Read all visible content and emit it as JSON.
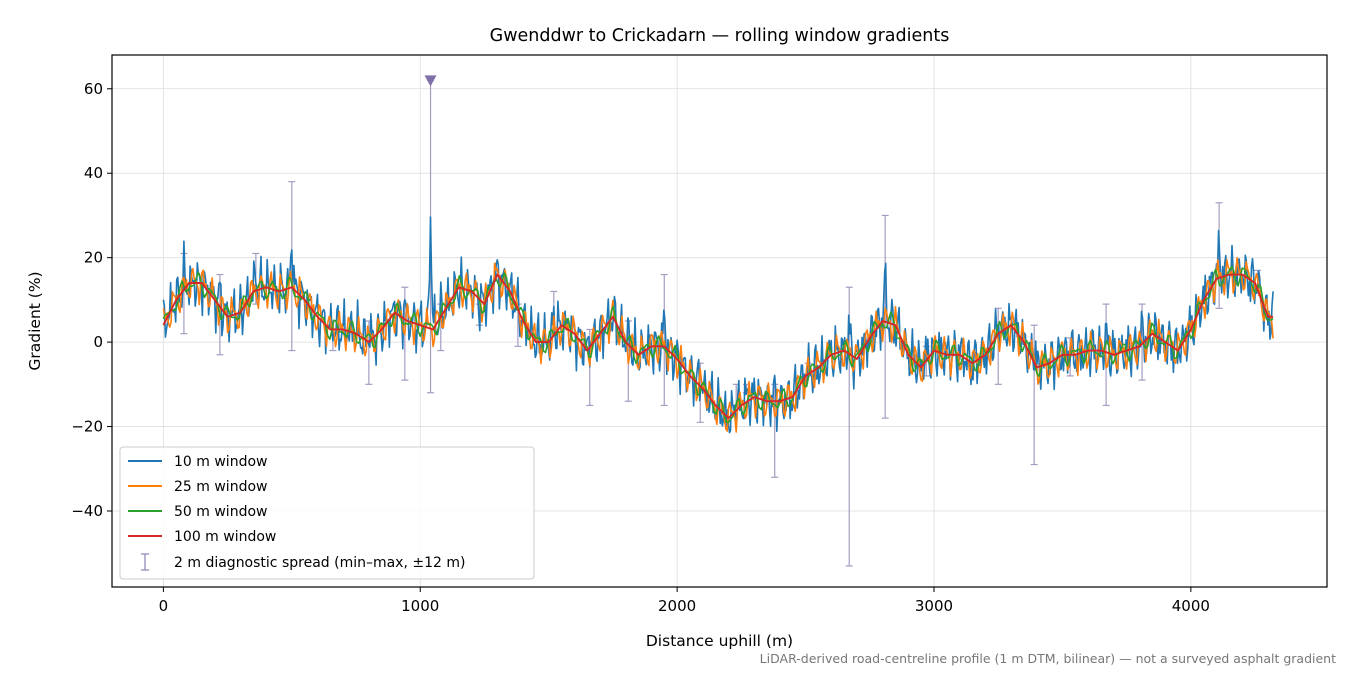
{
  "chart_data": {
    "type": "line",
    "title": "Gwenddwr to Crickadarn — rolling window gradients",
    "xlabel": "Distance uphill (m)",
    "ylabel": "Gradient (%)",
    "xlim": [
      -200,
      4530
    ],
    "ylim": [
      -58,
      68
    ],
    "xticks": [
      0,
      1000,
      2000,
      3000,
      4000
    ],
    "yticks": [
      -40,
      -20,
      0,
      20,
      40,
      60
    ],
    "xtick_labels": [
      "0",
      "1000",
      "2000",
      "3000",
      "4000"
    ],
    "ytick_labels": [
      "−40",
      "−20",
      "0",
      "20",
      "40",
      "60"
    ],
    "grid": true,
    "legend_position": "lower-left",
    "colors": {
      "w10": "#1f77b4",
      "w25": "#ff7f0e",
      "w50": "#2ca02c",
      "w100": "#d62728",
      "spread": "#9b93bd"
    },
    "x_max": 4320,
    "series": [
      {
        "key": "w100",
        "name": "100 m window",
        "points": [
          [
            0,
            4
          ],
          [
            50,
            10
          ],
          [
            100,
            14
          ],
          [
            150,
            14
          ],
          [
            200,
            10
          ],
          [
            250,
            6
          ],
          [
            300,
            7
          ],
          [
            350,
            12
          ],
          [
            400,
            13
          ],
          [
            450,
            12
          ],
          [
            500,
            13
          ],
          [
            550,
            10
          ],
          [
            600,
            6
          ],
          [
            650,
            3
          ],
          [
            700,
            3
          ],
          [
            750,
            2
          ],
          [
            800,
            0
          ],
          [
            850,
            3
          ],
          [
            900,
            7
          ],
          [
            950,
            5
          ],
          [
            1000,
            4
          ],
          [
            1050,
            3
          ],
          [
            1100,
            8
          ],
          [
            1150,
            13
          ],
          [
            1200,
            12
          ],
          [
            1250,
            9
          ],
          [
            1300,
            16
          ],
          [
            1350,
            12
          ],
          [
            1400,
            5
          ],
          [
            1450,
            0
          ],
          [
            1500,
            0
          ],
          [
            1550,
            4
          ],
          [
            1600,
            2
          ],
          [
            1650,
            -2
          ],
          [
            1700,
            2
          ],
          [
            1750,
            6
          ],
          [
            1800,
            0
          ],
          [
            1850,
            -3
          ],
          [
            1900,
            -1
          ],
          [
            1950,
            -1
          ],
          [
            2000,
            -4
          ],
          [
            2050,
            -8
          ],
          [
            2100,
            -11
          ],
          [
            2150,
            -15
          ],
          [
            2200,
            -18
          ],
          [
            2250,
            -15
          ],
          [
            2300,
            -13
          ],
          [
            2350,
            -14
          ],
          [
            2400,
            -14
          ],
          [
            2450,
            -13
          ],
          [
            2500,
            -8
          ],
          [
            2550,
            -6
          ],
          [
            2600,
            -3
          ],
          [
            2650,
            -2
          ],
          [
            2700,
            -4
          ],
          [
            2750,
            1
          ],
          [
            2800,
            5
          ],
          [
            2850,
            4
          ],
          [
            2900,
            -3
          ],
          [
            2950,
            -6
          ],
          [
            3000,
            -2
          ],
          [
            3050,
            -3
          ],
          [
            3100,
            -3
          ],
          [
            3150,
            -5
          ],
          [
            3200,
            -3
          ],
          [
            3250,
            2
          ],
          [
            3300,
            4
          ],
          [
            3350,
            0
          ],
          [
            3400,
            -6
          ],
          [
            3450,
            -5
          ],
          [
            3500,
            -3
          ],
          [
            3550,
            -3
          ],
          [
            3600,
            -2
          ],
          [
            3650,
            -2
          ],
          [
            3700,
            -3
          ],
          [
            3750,
            -2
          ],
          [
            3800,
            -1
          ],
          [
            3850,
            2
          ],
          [
            3900,
            0
          ],
          [
            3950,
            -2
          ],
          [
            4000,
            3
          ],
          [
            4050,
            10
          ],
          [
            4100,
            15
          ],
          [
            4150,
            16
          ],
          [
            4200,
            16
          ],
          [
            4250,
            14
          ],
          [
            4300,
            6
          ]
        ]
      },
      {
        "key": "w50",
        "name": "50 m window"
      },
      {
        "key": "w25",
        "name": "25 m window"
      },
      {
        "key": "w10",
        "name": "10 m window"
      }
    ],
    "spread_name": "2 m diagnostic spread (min–max, ±12 m)",
    "spread_bars": [
      [
        80,
        2,
        21
      ],
      [
        220,
        -3,
        16
      ],
      [
        360,
        9,
        21
      ],
      [
        500,
        -2,
        38
      ],
      [
        660,
        -2,
        5
      ],
      [
        800,
        -10,
        5
      ],
      [
        940,
        -9,
        13
      ],
      [
        1040,
        -12,
        62
      ],
      [
        1080,
        -2,
        9
      ],
      [
        1230,
        4,
        9
      ],
      [
        1380,
        -1,
        9
      ],
      [
        1520,
        2,
        12
      ],
      [
        1660,
        -15,
        3
      ],
      [
        1810,
        -14,
        5
      ],
      [
        1950,
        -15,
        16
      ],
      [
        2090,
        -19,
        -5
      ],
      [
        2230,
        -15,
        -10
      ],
      [
        2270,
        -12,
        -10
      ],
      [
        2380,
        -32,
        -10
      ],
      [
        2510,
        -8,
        -5
      ],
      [
        2670,
        -53,
        13
      ],
      [
        2810,
        -18,
        30
      ],
      [
        2970,
        -8,
        -1
      ],
      [
        3110,
        -5,
        -1
      ],
      [
        3250,
        -10,
        8
      ],
      [
        3390,
        -29,
        4
      ],
      [
        3530,
        -8,
        1
      ],
      [
        3670,
        -15,
        9
      ],
      [
        3810,
        -9,
        9
      ],
      [
        4110,
        8,
        33
      ],
      [
        4260,
        13,
        17
      ]
    ],
    "offscale_marker": {
      "x": 1040,
      "y": 62
    },
    "footnote": "LiDAR-derived road-centreline profile (1 m DTM, bilinear) — not a surveyed asphalt gradient"
  }
}
